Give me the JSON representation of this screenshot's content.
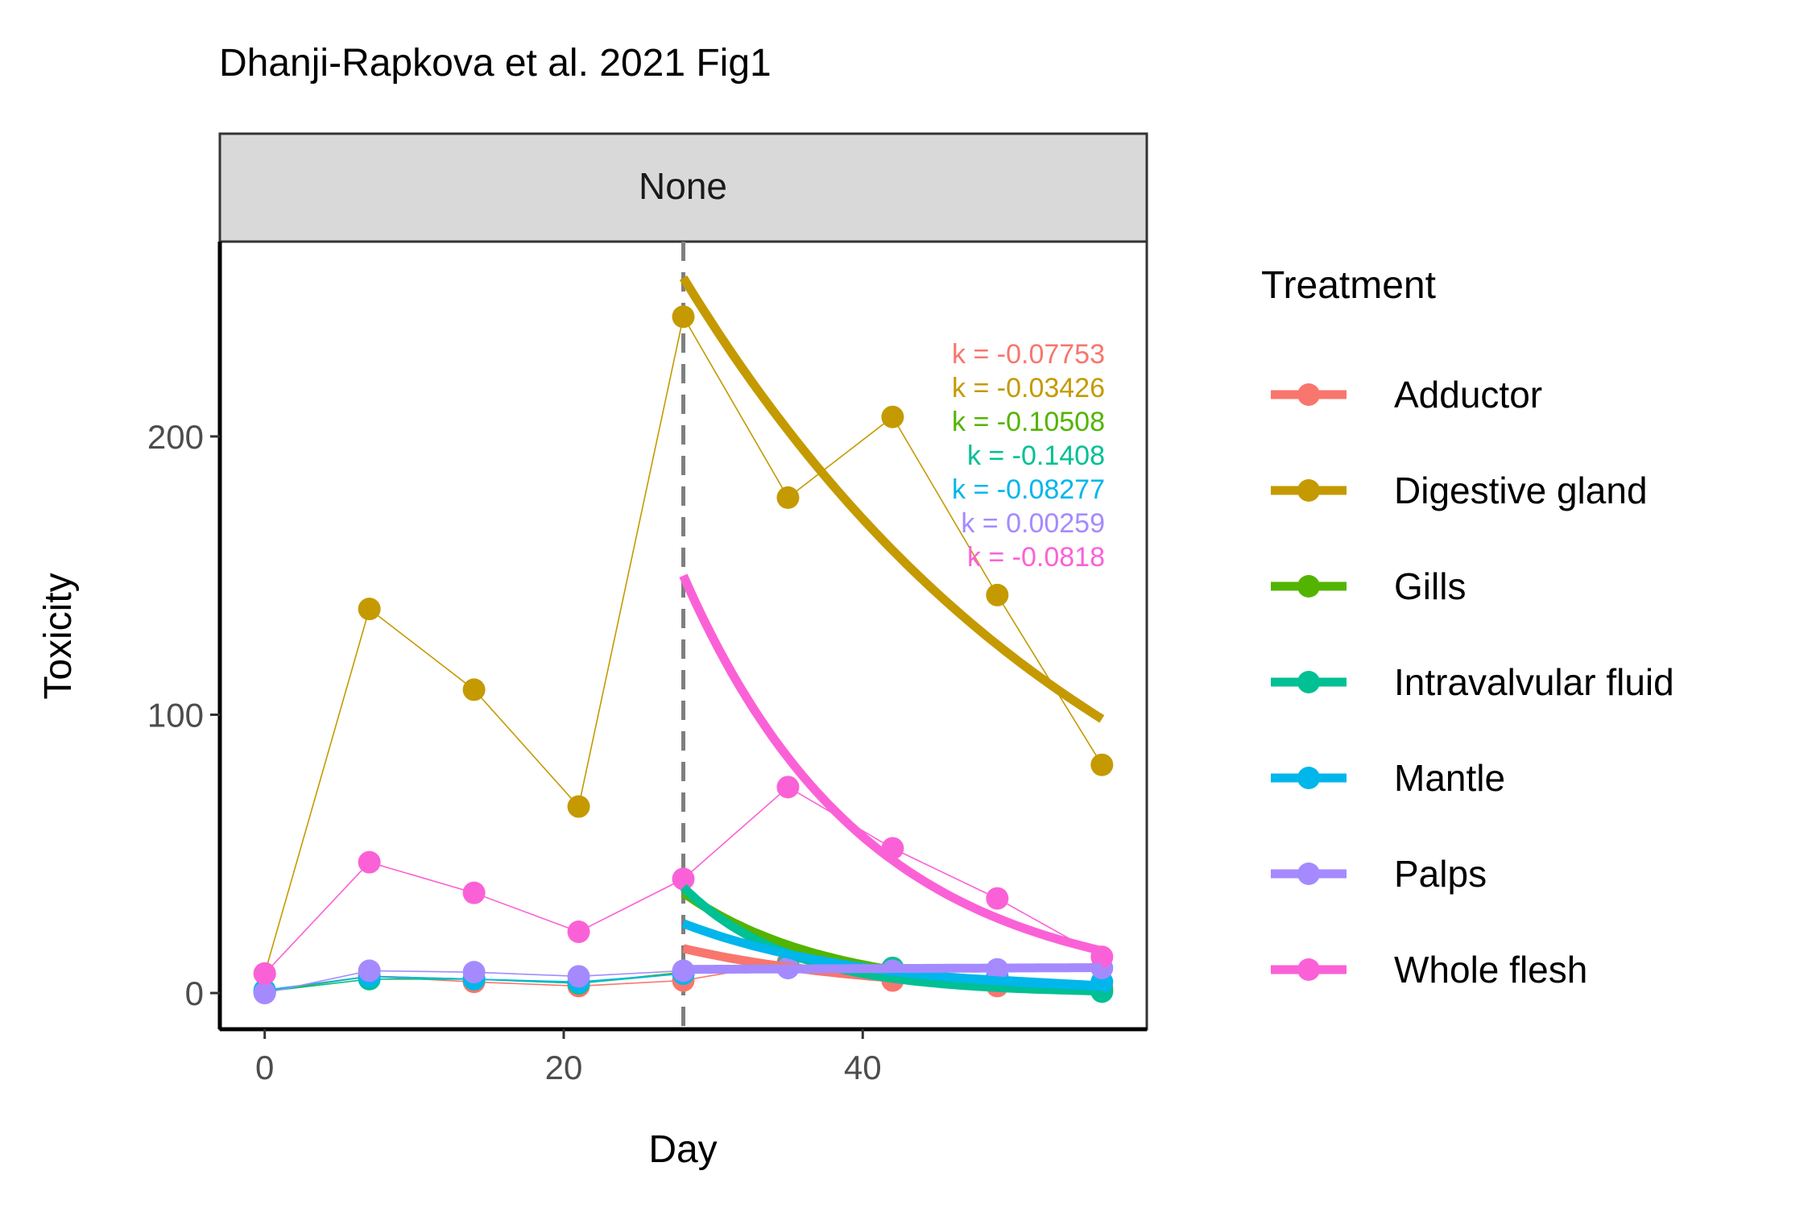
{
  "chart_data": {
    "type": "line",
    "title": "Dhanji-Rapkova et al. 2021 Fig1",
    "facet_label": "None",
    "xlabel": "Day",
    "ylabel": "Toxicity",
    "xlim": [
      -3,
      59
    ],
    "ylim": [
      -13,
      270
    ],
    "x_ticks": [
      0,
      20,
      40
    ],
    "y_ticks": [
      0,
      100,
      200
    ],
    "grid": false,
    "vline_x": 28,
    "legend": {
      "title": "Treatment",
      "position": "right"
    },
    "x": [
      0,
      7,
      14,
      21,
      28,
      35,
      42,
      49,
      56
    ],
    "series": [
      {
        "name": "Adductor",
        "color": "#F8766D",
        "values": [
          0.5,
          6,
          4,
          2.5,
          4.5,
          11,
          4.5,
          2.5,
          2
        ],
        "fit": {
          "k": -0.07753,
          "start": 16
        }
      },
      {
        "name": "Digestive gland",
        "color": "#C49A00",
        "values": [
          7,
          138,
          109,
          67,
          243,
          178,
          207,
          143,
          82
        ],
        "fit": {
          "k": -0.03426,
          "start": 257
        }
      },
      {
        "name": "Gills",
        "color": "#53B400",
        "values": [
          0.5,
          6,
          5,
          3.5,
          7.5,
          10,
          9,
          5,
          1
        ],
        "fit": {
          "k": -0.10508,
          "start": 36
        }
      },
      {
        "name": "Intravalvular fluid",
        "color": "#00C094",
        "values": [
          0.5,
          5,
          5,
          3.5,
          7,
          10,
          9,
          5,
          0.5
        ],
        "fit": {
          "k": -0.1408,
          "start": 38
        }
      },
      {
        "name": "Mantle",
        "color": "#00B6EB",
        "values": [
          1,
          6,
          5,
          4,
          7,
          9,
          8,
          6,
          4
        ],
        "fit": {
          "k": -0.08277,
          "start": 25
        }
      },
      {
        "name": "Palps",
        "color": "#A58AFF",
        "values": [
          0,
          8,
          7.5,
          6,
          8,
          9,
          8,
          8.5,
          9
        ],
        "fit": {
          "k": 0.00259,
          "start": 8.5
        }
      },
      {
        "name": "Whole flesh",
        "color": "#FB61D7",
        "values": [
          7,
          47,
          36,
          22,
          41,
          74,
          52,
          34,
          13
        ],
        "fit": {
          "k": -0.0818,
          "start": 150
        }
      }
    ],
    "annotations": [
      "k = -0.07753",
      "k = -0.03426",
      "k = -0.10508",
      "k = -0.1408",
      "k = -0.08277",
      "k = 0.00259",
      "k = -0.0818"
    ]
  }
}
